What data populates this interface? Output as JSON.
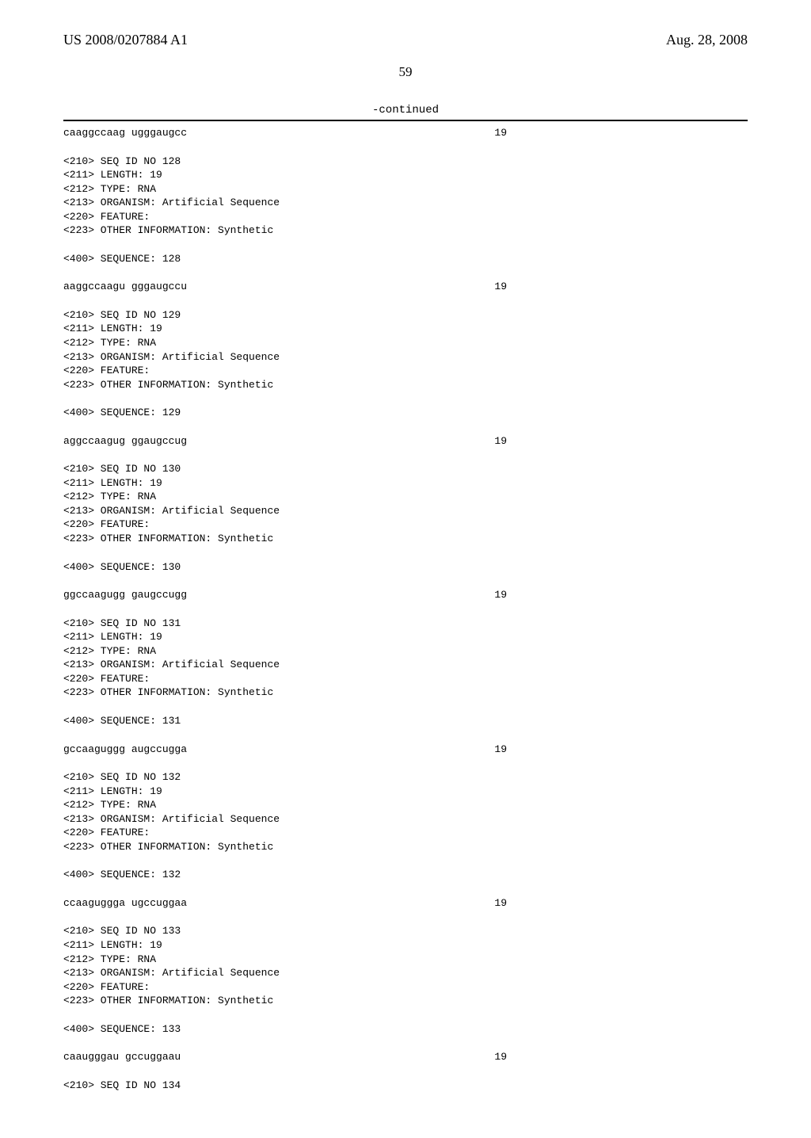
{
  "header": {
    "left": "US 2008/0207884 A1",
    "right": "Aug. 28, 2008"
  },
  "page_number": "59",
  "continued_label": "-continued",
  "blocks": [
    {
      "type": "seqrow",
      "sequence": "caaggccaag ugggaugcc",
      "length": "19"
    },
    {
      "type": "meta",
      "lines": [
        "<210> SEQ ID NO 128",
        "<211> LENGTH: 19",
        "<212> TYPE: RNA",
        "<213> ORGANISM: Artificial Sequence",
        "<220> FEATURE:",
        "<223> OTHER INFORMATION: Synthetic"
      ]
    },
    {
      "type": "single",
      "text": "<400> SEQUENCE: 128"
    },
    {
      "type": "seqrow",
      "sequence": "aaggccaagu gggaugccu",
      "length": "19"
    },
    {
      "type": "meta",
      "lines": [
        "<210> SEQ ID NO 129",
        "<211> LENGTH: 19",
        "<212> TYPE: RNA",
        "<213> ORGANISM: Artificial Sequence",
        "<220> FEATURE:",
        "<223> OTHER INFORMATION: Synthetic"
      ]
    },
    {
      "type": "single",
      "text": "<400> SEQUENCE: 129"
    },
    {
      "type": "seqrow",
      "sequence": "aggccaagug ggaugccug",
      "length": "19"
    },
    {
      "type": "meta",
      "lines": [
        "<210> SEQ ID NO 130",
        "<211> LENGTH: 19",
        "<212> TYPE: RNA",
        "<213> ORGANISM: Artificial Sequence",
        "<220> FEATURE:",
        "<223> OTHER INFORMATION: Synthetic"
      ]
    },
    {
      "type": "single",
      "text": "<400> SEQUENCE: 130"
    },
    {
      "type": "seqrow",
      "sequence": "ggccaagugg gaugccugg",
      "length": "19"
    },
    {
      "type": "meta",
      "lines": [
        "<210> SEQ ID NO 131",
        "<211> LENGTH: 19",
        "<212> TYPE: RNA",
        "<213> ORGANISM: Artificial Sequence",
        "<220> FEATURE:",
        "<223> OTHER INFORMATION: Synthetic"
      ]
    },
    {
      "type": "single",
      "text": "<400> SEQUENCE: 131"
    },
    {
      "type": "seqrow",
      "sequence": "gccaaguggg augccugga",
      "length": "19"
    },
    {
      "type": "meta",
      "lines": [
        "<210> SEQ ID NO 132",
        "<211> LENGTH: 19",
        "<212> TYPE: RNA",
        "<213> ORGANISM: Artificial Sequence",
        "<220> FEATURE:",
        "<223> OTHER INFORMATION: Synthetic"
      ]
    },
    {
      "type": "single",
      "text": "<400> SEQUENCE: 132"
    },
    {
      "type": "seqrow",
      "sequence": "ccaaguggga ugccuggaa",
      "length": "19"
    },
    {
      "type": "meta",
      "lines": [
        "<210> SEQ ID NO 133",
        "<211> LENGTH: 19",
        "<212> TYPE: RNA",
        "<213> ORGANISM: Artificial Sequence",
        "<220> FEATURE:",
        "<223> OTHER INFORMATION: Synthetic"
      ]
    },
    {
      "type": "single",
      "text": "<400> SEQUENCE: 133"
    },
    {
      "type": "seqrow",
      "sequence": "caaugggau gccuggaau",
      "length": "19",
      "override_sequence": "caaugggau gccuggaau"
    },
    {
      "type": "seqrow_custom",
      "sequence": "caaugggau gccuggaau",
      "length": "19"
    },
    {
      "type": "single",
      "text": "<210> SEQ ID NO 134"
    }
  ],
  "seq133_row": {
    "sequence": "caaugggau gccuggaau",
    "length": "19"
  },
  "actual_blocks": [
    {
      "kind": "seqrow",
      "seq": "caaggccaag ugggaugcc",
      "len": "19"
    },
    {
      "kind": "meta",
      "lines": [
        "<210> SEQ ID NO 128",
        "<211> LENGTH: 19",
        "<212> TYPE: RNA",
        "<213> ORGANISM: Artificial Sequence",
        "<220> FEATURE:",
        "<223> OTHER INFORMATION: Synthetic"
      ]
    },
    {
      "kind": "single",
      "text": "<400> SEQUENCE: 128"
    },
    {
      "kind": "seqrow",
      "seq": "aaggccaagu gggaugccu",
      "len": "19"
    },
    {
      "kind": "meta",
      "lines": [
        "<210> SEQ ID NO 129",
        "<211> LENGTH: 19",
        "<212> TYPE: RNA",
        "<213> ORGANISM: Artificial Sequence",
        "<220> FEATURE:",
        "<223> OTHER INFORMATION: Synthetic"
      ]
    },
    {
      "kind": "single",
      "text": "<400> SEQUENCE: 129"
    },
    {
      "kind": "seqrow",
      "seq": "aggccaagug ggaugccug",
      "len": "19"
    },
    {
      "kind": "meta",
      "lines": [
        "<210> SEQ ID NO 130",
        "<211> LENGTH: 19",
        "<212> TYPE: RNA",
        "<213> ORGANISM: Artificial Sequence",
        "<220> FEATURE:",
        "<223> OTHER INFORMATION: Synthetic"
      ]
    },
    {
      "kind": "single",
      "text": "<400> SEQUENCE: 130"
    },
    {
      "kind": "seqrow",
      "seq": "ggccaagugg gaugccugg",
      "len": "19"
    },
    {
      "kind": "meta",
      "lines": [
        "<210> SEQ ID NO 131",
        "<211> LENGTH: 19",
        "<212> TYPE: RNA",
        "<213> ORGANISM: Artificial Sequence",
        "<220> FEATURE:",
        "<223> OTHER INFORMATION: Synthetic"
      ]
    },
    {
      "kind": "single",
      "text": "<400> SEQUENCE: 131"
    },
    {
      "kind": "seqrow",
      "seq": "gccaaguggg augccugga",
      "len": "19"
    },
    {
      "kind": "meta",
      "lines": [
        "<210> SEQ ID NO 132",
        "<211> LENGTH: 19",
        "<212> TYPE: RNA",
        "<213> ORGANISM: Artificial Sequence",
        "<220> FEATURE:",
        "<223> OTHER INFORMATION: Synthetic"
      ]
    },
    {
      "kind": "single",
      "text": "<400> SEQUENCE: 132"
    },
    {
      "kind": "seqrow",
      "seq": "ccaaguggga ugccuggaa",
      "len": "19"
    },
    {
      "kind": "meta",
      "lines": [
        "<210> SEQ ID NO 133",
        "<211> LENGTH: 19",
        "<212> TYPE: RNA",
        "<213> ORGANISM: Artificial Sequence",
        "<220> FEATURE:",
        "<223> OTHER INFORMATION: Synthetic"
      ]
    },
    {
      "kind": "single",
      "text": "<400> SEQUENCE: 133"
    },
    {
      "kind": "seqrow",
      "seq": "caaugggau gccuggaau",
      "len": "19"
    },
    {
      "kind": "single",
      "text": "<210> SEQ ID NO 134"
    }
  ]
}
